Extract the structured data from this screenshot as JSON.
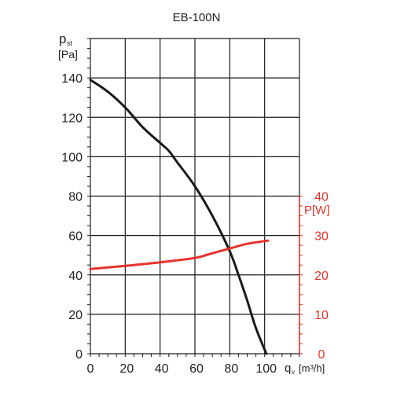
{
  "chart_data": {
    "type": "line",
    "title": "EB-100N",
    "x": {
      "symbol": "q",
      "subscript": "v",
      "unit": "[m³/h]",
      "ticks": [
        0,
        20,
        40,
        60,
        80,
        100
      ],
      "range": [
        0,
        120
      ]
    },
    "y_left": {
      "symbol": "p",
      "subscript": "st",
      "unit": "[Pa]",
      "ticks": [
        0,
        20,
        40,
        60,
        80,
        100,
        120,
        140
      ],
      "range": [
        0,
        160
      ]
    },
    "y_right": {
      "label": "P[W]",
      "ticks": [
        0,
        10,
        20,
        30,
        40
      ],
      "range": [
        0,
        40
      ]
    },
    "grid": true,
    "series": [
      {
        "axis": "left",
        "color": "#1a1a1a",
        "points": [
          [
            0,
            139
          ],
          [
            10,
            133
          ],
          [
            20,
            125
          ],
          [
            30,
            115
          ],
          [
            40,
            107
          ],
          [
            45,
            103
          ],
          [
            50,
            97
          ],
          [
            60,
            85
          ],
          [
            70,
            70
          ],
          [
            80,
            52
          ],
          [
            85,
            40
          ],
          [
            90,
            27
          ],
          [
            95,
            13
          ],
          [
            101,
            0
          ]
        ]
      },
      {
        "axis": "right",
        "color": "#e8322b",
        "points": [
          [
            0,
            21.5
          ],
          [
            20,
            22.3
          ],
          [
            40,
            23.2
          ],
          [
            60,
            24.3
          ],
          [
            70,
            25.5
          ],
          [
            80,
            26.7
          ],
          [
            90,
            27.9
          ],
          [
            102,
            28.7
          ]
        ]
      }
    ]
  }
}
